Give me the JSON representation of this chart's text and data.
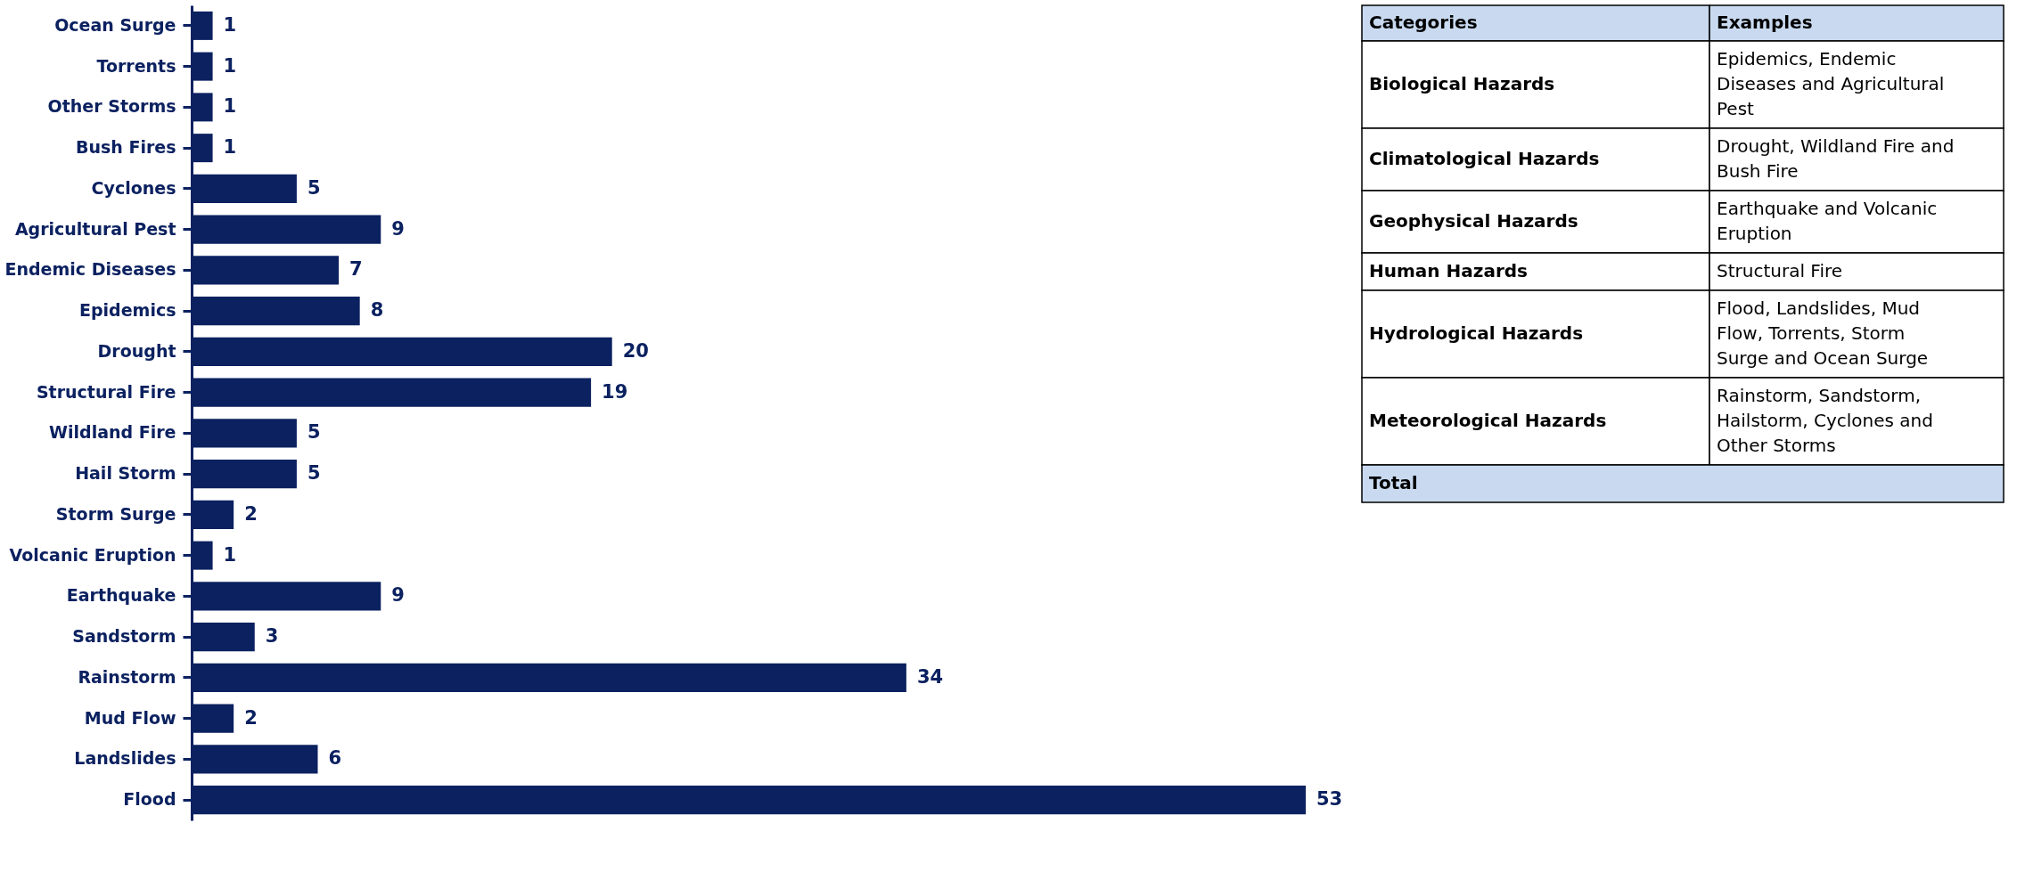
{
  "chart_data": [
    {
      "type": "bar",
      "orientation": "horizontal",
      "categories": [
        "Ocean Surge",
        "Torrents",
        "Other Storms",
        "Bush Fires",
        "Cyclones",
        "Agricultural Pest",
        "Endemic Diseases",
        "Epidemics",
        "Drought",
        "Structural Fire",
        "Wildland Fire",
        "Hail Storm",
        "Storm Surge",
        "Volcanic Eruption",
        "Earthquake",
        "Sandstorm",
        "Rainstorm",
        "Mud Flow",
        "Landslides",
        "Flood"
      ],
      "values": [
        1,
        1,
        1,
        1,
        5,
        9,
        7,
        8,
        20,
        19,
        5,
        5,
        2,
        1,
        9,
        3,
        34,
        2,
        6,
        53
      ],
      "color": "#0b2160",
      "data_labels": true,
      "grid": false,
      "tick_labels": "y"
    },
    {
      "type": "other",
      "categories": [
        "Categories",
        "Examples"
      ],
      "y_categories": [
        "Biological Hazards",
        "Climatological Hazards",
        "Geophysical Hazards",
        "Human Hazards",
        "Hydrological Hazards",
        "Meteorological Hazards",
        "Total"
      ],
      "annotations": [
        "Epidemics, Endemic Diseases and Agricultural Pest",
        "Drought, Wildland Fire and Bush Fire",
        "Earthquake and Volcanic Eruption",
        "Structural Fire",
        "Flood, Landslides, Mud Flow, Torrents, Storm Surge and Ocean Surge",
        "Rainstorm, Sandstorm, Hailstorm, Cyclones and Other Storms"
      ],
      "color": "#c9daf0"
    }
  ]
}
